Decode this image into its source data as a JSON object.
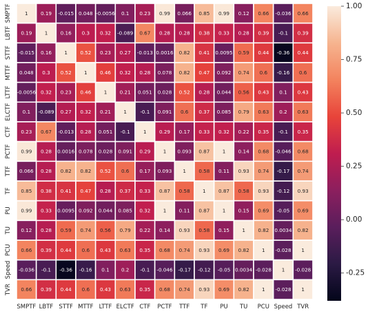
{
  "chart_data": {
    "type": "heatmap",
    "labels": [
      "SMPTF",
      "LBTF",
      "STTF",
      "MTTF",
      "LTTF",
      "ELCTF",
      "CTF",
      "PCTF",
      "TTF",
      "TF",
      "PU",
      "TU",
      "PCU",
      "Speed",
      "TVR"
    ],
    "matrix": [
      [
        1,
        0.19,
        -0.015,
        0.048,
        -0.0056,
        0.1,
        0.23,
        0.99,
        0.066,
        0.85,
        0.99,
        0.12,
        0.66,
        -0.036,
        0.66
      ],
      [
        0.19,
        1,
        0.16,
        0.3,
        0.32,
        -0.089,
        0.67,
        0.28,
        0.28,
        0.38,
        0.33,
        0.28,
        0.39,
        -0.1,
        0.39
      ],
      [
        -0.015,
        0.16,
        1,
        0.52,
        0.23,
        0.27,
        -0.013,
        0.0016,
        0.82,
        0.41,
        0.0095,
        0.59,
        0.44,
        -0.36,
        0.44
      ],
      [
        0.048,
        0.3,
        0.52,
        1,
        0.46,
        0.32,
        0.28,
        0.078,
        0.82,
        0.47,
        0.092,
        0.74,
        0.6,
        -0.16,
        0.6
      ],
      [
        -0.0056,
        0.32,
        0.23,
        0.46,
        1,
        0.21,
        0.051,
        0.028,
        0.52,
        0.28,
        0.044,
        0.56,
        0.43,
        0.1,
        0.43
      ],
      [
        0.1,
        -0.089,
        0.27,
        0.32,
        0.21,
        1,
        -0.1,
        0.091,
        0.6,
        0.37,
        0.085,
        0.79,
        0.63,
        0.2,
        0.63
      ],
      [
        0.23,
        0.67,
        -0.013,
        0.28,
        0.051,
        -0.1,
        1,
        0.29,
        0.17,
        0.33,
        0.32,
        0.22,
        0.35,
        -0.1,
        0.35
      ],
      [
        0.99,
        0.28,
        0.0016,
        0.078,
        0.028,
        0.091,
        0.29,
        1,
        0.093,
        0.87,
        1,
        0.14,
        0.68,
        -0.046,
        0.68
      ],
      [
        0.066,
        0.28,
        0.82,
        0.82,
        0.52,
        0.6,
        0.17,
        0.093,
        1,
        0.58,
        0.11,
        0.93,
        0.74,
        -0.17,
        0.74
      ],
      [
        0.85,
        0.38,
        0.41,
        0.47,
        0.28,
        0.37,
        0.33,
        0.87,
        0.58,
        1,
        0.87,
        0.58,
        0.93,
        -0.12,
        0.93
      ],
      [
        0.99,
        0.33,
        0.0095,
        0.092,
        0.044,
        0.085,
        0.32,
        1,
        0.11,
        0.87,
        1,
        0.15,
        0.69,
        -0.05,
        0.69
      ],
      [
        0.12,
        0.28,
        0.59,
        0.74,
        0.56,
        0.79,
        0.22,
        0.14,
        0.93,
        0.58,
        0.15,
        1,
        0.82,
        0.0034,
        0.82
      ],
      [
        0.66,
        0.39,
        0.44,
        0.6,
        0.43,
        0.63,
        0.35,
        0.68,
        0.74,
        0.93,
        0.69,
        0.82,
        1,
        -0.028,
        1
      ],
      [
        -0.036,
        -0.1,
        -0.36,
        -0.16,
        0.1,
        0.2,
        -0.1,
        -0.046,
        -0.17,
        -0.12,
        -0.05,
        0.0034,
        -0.028,
        1,
        -0.028
      ],
      [
        0.66,
        0.39,
        0.44,
        0.6,
        0.43,
        0.63,
        0.35,
        0.68,
        0.74,
        0.93,
        0.69,
        0.82,
        1,
        -0.028,
        1
      ]
    ],
    "colorbar": {
      "vmin": -0.38,
      "vmax": 1.0,
      "ticks": [
        1.0,
        0.75,
        0.5,
        0.25,
        0.0,
        -0.25
      ],
      "tick_labels": [
        "1.00",
        "0.75",
        "0.50",
        "0.25",
        "0.00",
        "-0.25"
      ],
      "colormap": "rocket",
      "stops": [
        "#03051a",
        "#2b1a44",
        "#5a1e5c",
        "#8c1f5e",
        "#bf1d4f",
        "#e8443a",
        "#f3835e",
        "#f6b48f",
        "#faebdd"
      ]
    }
  }
}
